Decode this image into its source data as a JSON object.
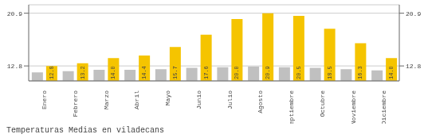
{
  "chart_data": {
    "type": "bar",
    "title": "Temperaturas Medias en viladecans",
    "categories": [
      "Enero",
      "Febrero",
      "Marzo",
      "Abril",
      "Mayo",
      "Junio",
      "Julio",
      "Agosto",
      "Septiembre",
      "Octubre",
      "Noviembre",
      "Diciembre"
    ],
    "series": [
      {
        "color": "#C0C0C0",
        "values": [
          11.8,
          12.0,
          12.2,
          12.2,
          12.3,
          12.5,
          12.6,
          12.7,
          12.6,
          12.5,
          12.3,
          12.1
        ]
      },
      {
        "color": "#F5C400",
        "values": [
          12.8,
          13.2,
          14.0,
          14.4,
          15.7,
          17.6,
          20.0,
          20.9,
          20.5,
          18.5,
          16.3,
          14.0
        ],
        "data_labels": true,
        "value_labels": [
          "12.8",
          "13.2",
          "14.0",
          "14.4",
          "15.7",
          "17.6",
          "20.0",
          "20.9",
          "20.5",
          "18.5",
          "16.3",
          "14.0"
        ]
      }
    ],
    "ylim": [
      10.5,
      22.2
    ],
    "yticks": [
      12.8,
      20.9
    ],
    "y2lim": [
      10.5,
      22.2
    ],
    "y2ticks": [
      12.8,
      20.9
    ],
    "grid": true
  }
}
